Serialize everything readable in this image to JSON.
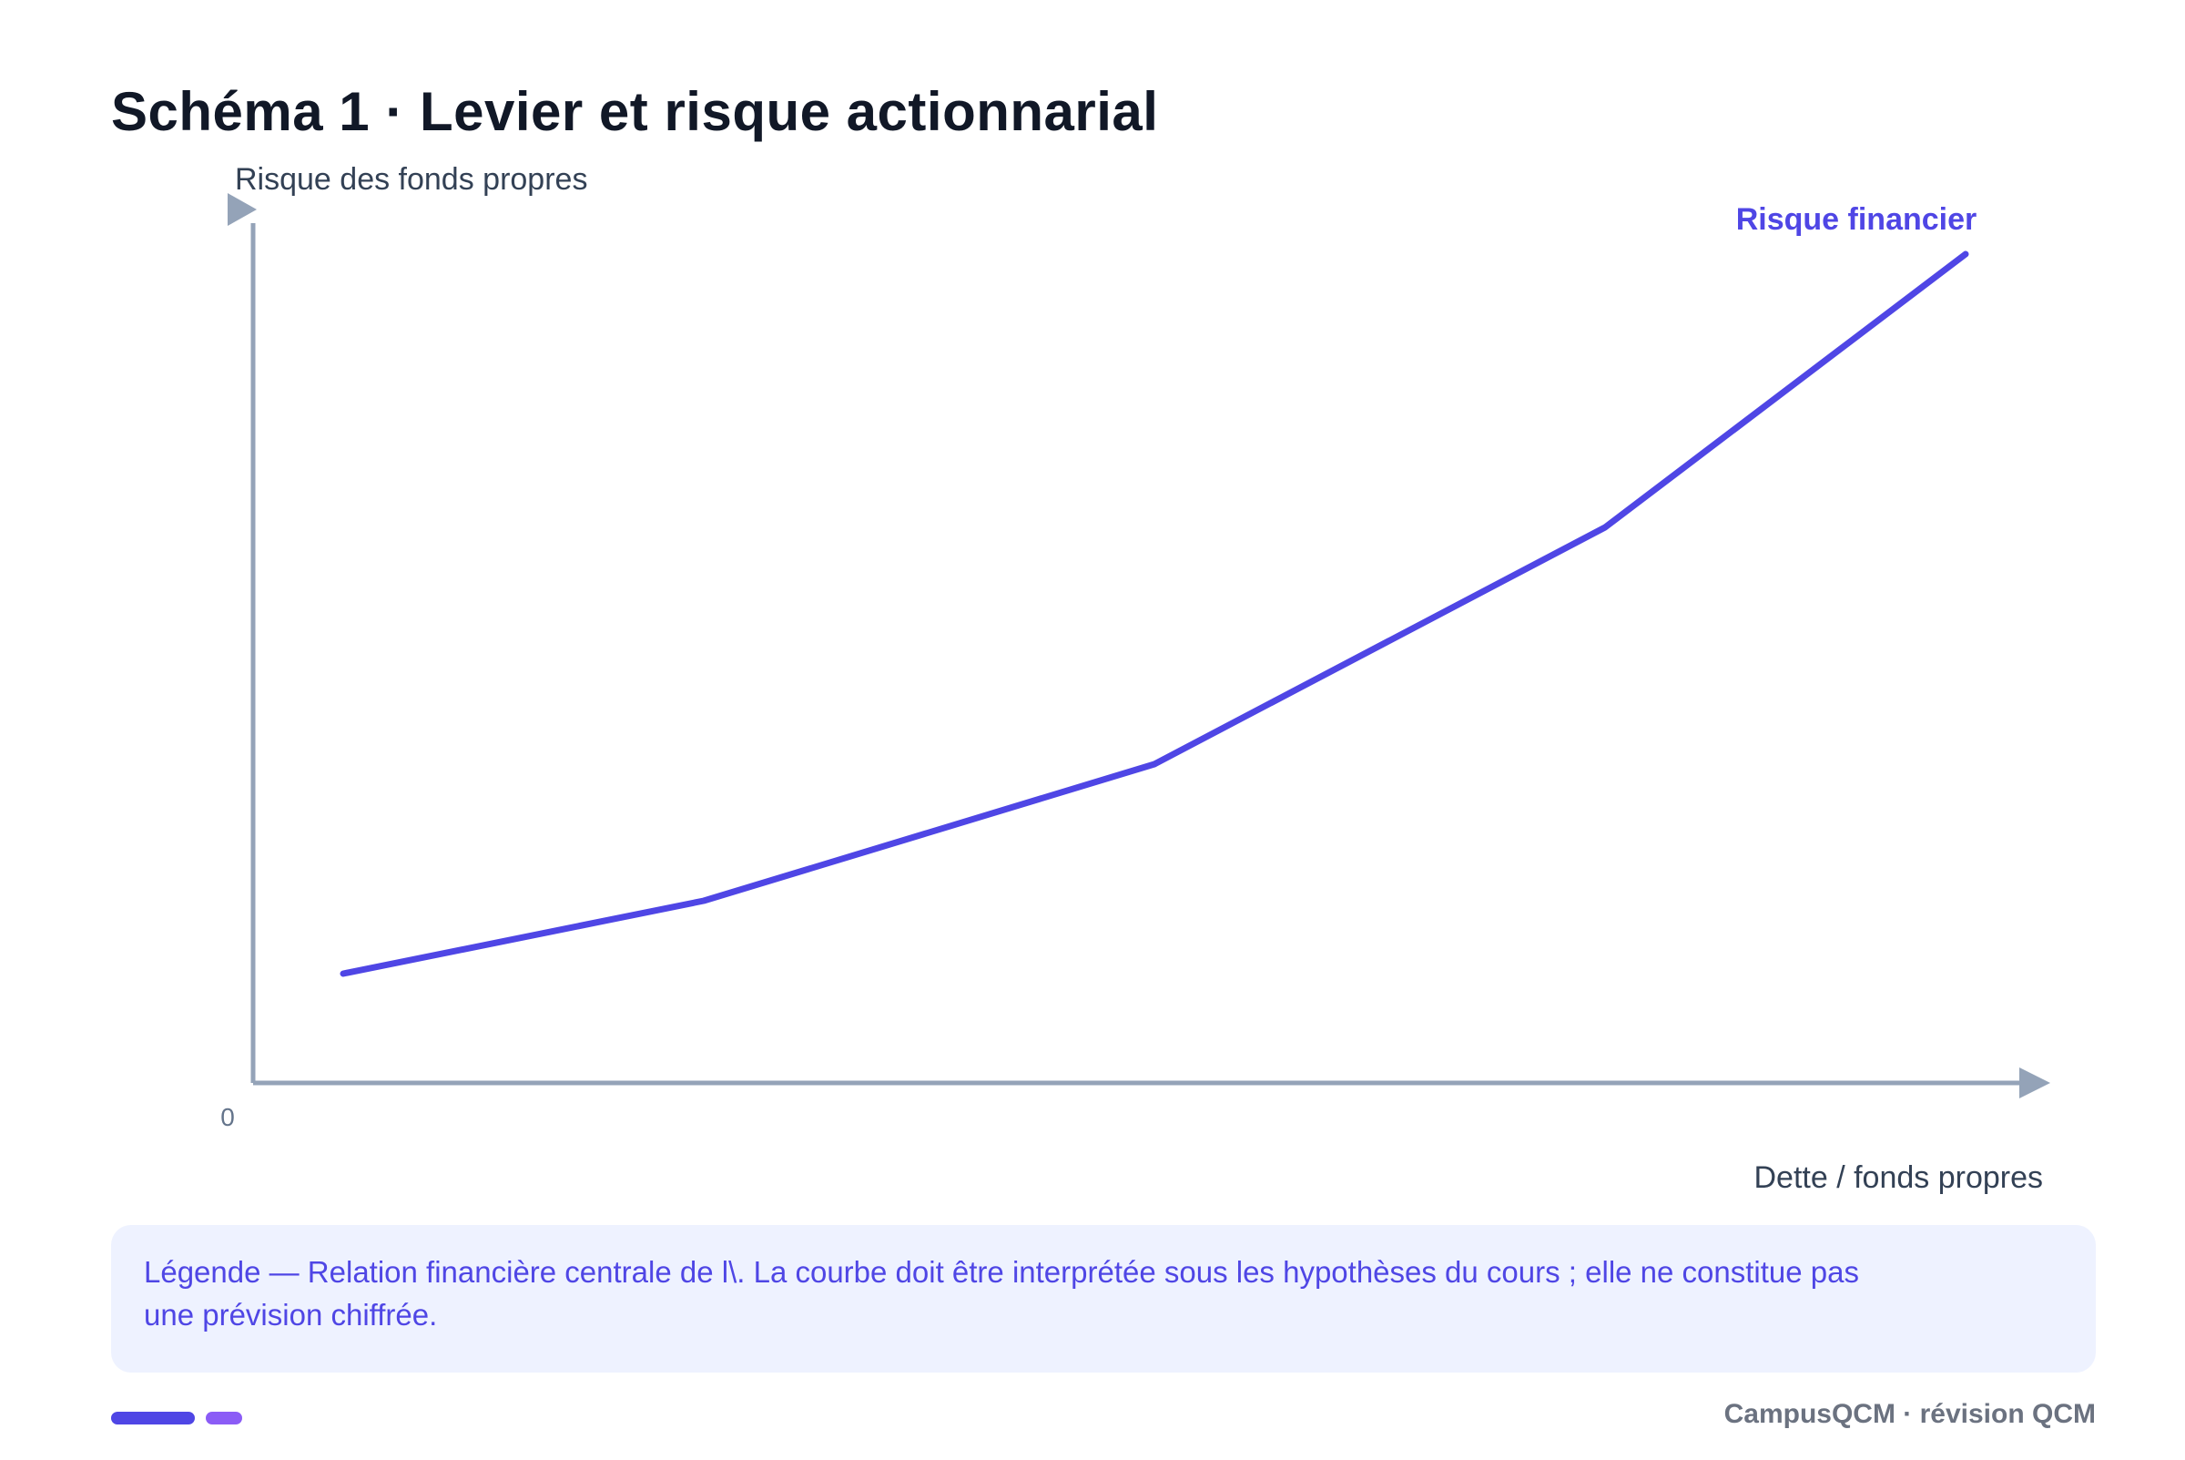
{
  "page": {
    "title": "Schéma 1 · Levier et risque actionnarial",
    "legend_line1": "Légende — Relation financière centrale de l\\. La courbe doit être interprétée sous les hypothèses du cours ; elle ne constitue pas",
    "legend_line2": "une prévision chiffrée.",
    "footer": "CampusQCM · révision QCM"
  },
  "colors": {
    "axis": "#94a3b8",
    "series": "#4f46e5",
    "accent": "#8b5cf6",
    "axis_text": "#334155",
    "tick_text": "#64748b"
  },
  "chart_data": {
    "type": "line",
    "title": "Schéma 1 · Levier et risque actionnarial",
    "xlabel": "Dette / fonds propres",
    "ylabel": "Risque des fonds propres",
    "origin_label": "0",
    "xlim": [
      0,
      10
    ],
    "ylim": [
      0,
      10
    ],
    "grid": false,
    "series": [
      {
        "name": "Risque financier",
        "x": [
          0.5,
          2.5,
          5.0,
          7.5,
          9.5
        ],
        "y": [
          1.2,
          2.0,
          3.5,
          6.1,
          9.1
        ]
      }
    ]
  }
}
